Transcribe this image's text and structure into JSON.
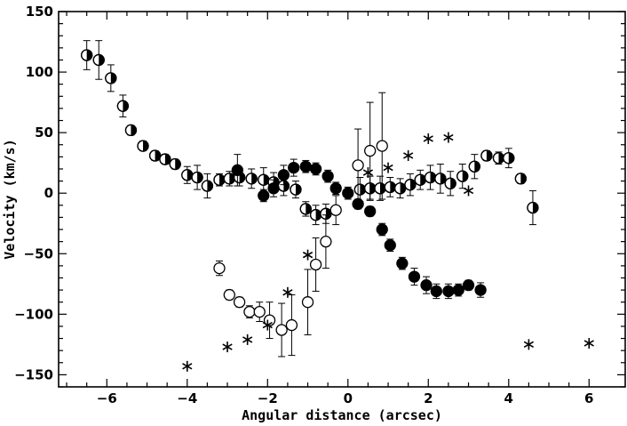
{
  "chart_data": {
    "type": "scatter",
    "xlabel": "Angular distance (arcsec)",
    "ylabel": "Velocity (km/s)",
    "xlim": [
      -7.2,
      6.9
    ],
    "ylim": [
      -160,
      150
    ],
    "xticks": [
      -6,
      -4,
      -2,
      0,
      2,
      4,
      6
    ],
    "yticks": [
      -150,
      -100,
      -50,
      0,
      50,
      100,
      150
    ],
    "xtick_labels": [
      "−6",
      "−4",
      "−2",
      "0",
      "2",
      "4",
      "6"
    ],
    "ytick_labels": [
      "−150",
      "−100",
      "−50",
      "0",
      "50",
      "100",
      "150"
    ],
    "grid": false,
    "series": [
      {
        "marker": "half-filled-circle",
        "points": [
          {
            "x": -6.5,
            "y": 114,
            "err": 12
          },
          {
            "x": -6.2,
            "y": 110,
            "err": 16
          },
          {
            "x": -5.9,
            "y": 95,
            "err": 11
          },
          {
            "x": -5.6,
            "y": 72,
            "err": 9
          },
          {
            "x": -5.4,
            "y": 52,
            "err": 4
          },
          {
            "x": -5.1,
            "y": 39,
            "err": 4
          },
          {
            "x": -4.8,
            "y": 31,
            "err": 4
          },
          {
            "x": -4.55,
            "y": 28,
            "err": 4
          },
          {
            "x": -4.3,
            "y": 24,
            "err": 4
          },
          {
            "x": -4.0,
            "y": 15,
            "err": 7
          },
          {
            "x": -3.75,
            "y": 13,
            "err": 10
          },
          {
            "x": -3.5,
            "y": 6,
            "err": 10
          },
          {
            "x": -3.2,
            "y": 11,
            "err": 5
          },
          {
            "x": -2.95,
            "y": 12,
            "err": 6
          },
          {
            "x": -2.7,
            "y": 13,
            "err": 7
          },
          {
            "x": -2.4,
            "y": 12,
            "err": 8
          },
          {
            "x": -2.1,
            "y": 11,
            "err": 10
          },
          {
            "x": -1.85,
            "y": 9,
            "err": 8
          },
          {
            "x": -1.6,
            "y": 6,
            "err": 8
          },
          {
            "x": -1.3,
            "y": 3,
            "err": 7
          },
          {
            "x": -1.05,
            "y": -13,
            "err": 6
          },
          {
            "x": -0.8,
            "y": -18,
            "err": 8
          },
          {
            "x": -0.55,
            "y": -17,
            "err": 8
          },
          {
            "x": 0.3,
            "y": 3,
            "err": 10
          },
          {
            "x": 0.55,
            "y": 4,
            "err": 10
          },
          {
            "x": 0.8,
            "y": 4,
            "err": 10
          },
          {
            "x": 1.05,
            "y": 5,
            "err": 8
          },
          {
            "x": 1.3,
            "y": 4,
            "err": 8
          },
          {
            "x": 1.55,
            "y": 7,
            "err": 9
          },
          {
            "x": 1.8,
            "y": 11,
            "err": 8
          },
          {
            "x": 2.05,
            "y": 13,
            "err": 10
          },
          {
            "x": 2.3,
            "y": 12,
            "err": 12
          },
          {
            "x": 2.55,
            "y": 8,
            "err": 10
          },
          {
            "x": 2.85,
            "y": 14,
            "err": 10
          },
          {
            "x": 3.15,
            "y": 22,
            "err": 10
          },
          {
            "x": 3.45,
            "y": 31,
            "err": 4
          },
          {
            "x": 3.75,
            "y": 29,
            "err": 5
          },
          {
            "x": 4.0,
            "y": 29,
            "err": 8
          },
          {
            "x": 4.3,
            "y": 12,
            "err": 4
          },
          {
            "x": 4.6,
            "y": -12,
            "err": 14
          }
        ]
      },
      {
        "marker": "filled-circle",
        "points": [
          {
            "x": -2.75,
            "y": 19,
            "err": 13
          },
          {
            "x": -2.1,
            "y": -2,
            "err": 5
          },
          {
            "x": -1.85,
            "y": 4,
            "err": 7
          },
          {
            "x": -1.6,
            "y": 15,
            "err": 8
          },
          {
            "x": -1.35,
            "y": 21,
            "err": 7
          },
          {
            "x": -1.05,
            "y": 22,
            "err": 5
          },
          {
            "x": -0.8,
            "y": 20,
            "err": 5
          },
          {
            "x": -0.5,
            "y": 14,
            "err": 5
          },
          {
            "x": -0.3,
            "y": 4,
            "err": 5
          },
          {
            "x": 0.0,
            "y": 0,
            "err": 5
          },
          {
            "x": 0.25,
            "y": -9,
            "err": 4
          },
          {
            "x": 0.55,
            "y": -15,
            "err": 4
          },
          {
            "x": 0.85,
            "y": -30,
            "err": 5
          },
          {
            "x": 1.05,
            "y": -43,
            "err": 5
          },
          {
            "x": 1.35,
            "y": -58,
            "err": 5
          },
          {
            "x": 1.65,
            "y": -69,
            "err": 7
          },
          {
            "x": 1.95,
            "y": -76,
            "err": 7
          },
          {
            "x": 2.2,
            "y": -81,
            "err": 6
          },
          {
            "x": 2.5,
            "y": -81,
            "err": 6
          },
          {
            "x": 2.75,
            "y": -80,
            "err": 5
          },
          {
            "x": 3.0,
            "y": -76,
            "err": 4
          },
          {
            "x": 3.3,
            "y": -80,
            "err": 6
          }
        ]
      },
      {
        "marker": "open-circle",
        "points": [
          {
            "x": -3.2,
            "y": -62,
            "err": 6
          },
          {
            "x": -2.95,
            "y": -84,
            "err": 4
          },
          {
            "x": -2.7,
            "y": -90,
            "err": 4
          },
          {
            "x": -2.45,
            "y": -98,
            "err": 5
          },
          {
            "x": -2.2,
            "y": -98,
            "err": 8
          },
          {
            "x": -1.95,
            "y": -105,
            "err": 15
          },
          {
            "x": -1.65,
            "y": -113,
            "err": 22
          },
          {
            "x": -1.4,
            "y": -109,
            "err": 25
          },
          {
            "x": -1.0,
            "y": -90,
            "err": 27
          },
          {
            "x": -0.8,
            "y": -59,
            "err": 22
          },
          {
            "x": -0.55,
            "y": -40,
            "err": 22
          },
          {
            "x": -0.3,
            "y": -14,
            "err": 12
          },
          {
            "x": 0.25,
            "y": 23,
            "err": 30
          },
          {
            "x": 0.55,
            "y": 35,
            "err": 40
          },
          {
            "x": 0.85,
            "y": 39,
            "err": 44
          }
        ]
      },
      {
        "marker": "asterisk",
        "points": [
          {
            "x": -4.0,
            "y": -143
          },
          {
            "x": -3.0,
            "y": -127
          },
          {
            "x": -2.5,
            "y": -121
          },
          {
            "x": -2.0,
            "y": -109
          },
          {
            "x": -1.5,
            "y": -82
          },
          {
            "x": -1.0,
            "y": -51
          },
          {
            "x": 0.5,
            "y": 17
          },
          {
            "x": 1.0,
            "y": 21
          },
          {
            "x": 1.5,
            "y": 31
          },
          {
            "x": 2.0,
            "y": 45
          },
          {
            "x": 2.5,
            "y": 46
          },
          {
            "x": 3.0,
            "y": 2
          },
          {
            "x": 4.5,
            "y": -125
          },
          {
            "x": 6.0,
            "y": -124
          }
        ]
      }
    ]
  }
}
